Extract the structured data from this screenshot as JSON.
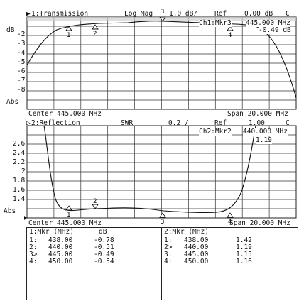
{
  "ch1": {
    "header_marker": "▶",
    "title": "1:Transmission",
    "format": "Log Mag",
    "active_marker_num": "3",
    "scale": "1.0 dB/",
    "ref": "Ref",
    "ref_value": "0.00 dB",
    "flag": "C",
    "unit_label": "dB",
    "abs_label": "Abs",
    "y_ticks": [
      "-2",
      "-3",
      "-4",
      "-5",
      "-6",
      "-7",
      "-8"
    ],
    "marker_readout": "Ch1:Mkr3",
    "marker_freq": "445.000 MHz",
    "marker_val": "-0.49 dB",
    "center": "Center 445.000 MHz",
    "span": "Span 20.000 MHz",
    "markers": [
      "1",
      "2",
      "4"
    ],
    "stripe_color": "#c8c8c8"
  },
  "ch2": {
    "header_marker": "▷",
    "title": "2:Reflection",
    "format": "SWR",
    "scale": "0.2 /",
    "ref": "Ref",
    "ref_value": "1.00",
    "flag": "C",
    "abs_label": "Abs",
    "y_ticks": [
      "2.6",
      "2.4",
      "2.2",
      "2",
      "1.8",
      "1.6",
      "1.4"
    ],
    "marker_readout": "Ch2:Mkr2",
    "marker_freq": "440.000 MHz",
    "marker_val": "1.19",
    "center": "Center 445.000 MHz",
    "span": "Span 20.000 MHz",
    "markers": [
      "1",
      "2",
      "3",
      "4"
    ]
  },
  "table1": {
    "header": [
      "1:Mkr (MHz)",
      "dB"
    ],
    "rows": [
      [
        "1:",
        "438.00",
        "-0.78"
      ],
      [
        "2:",
        "440.00",
        "-0.51"
      ],
      [
        "3>",
        "445.00",
        "-0.49"
      ],
      [
        "4:",
        "450.00",
        "-0.54"
      ]
    ]
  },
  "table2": {
    "header": [
      "2:Mkr (MHz)",
      ""
    ],
    "rows": [
      [
        "1:",
        "438.00",
        "1.42"
      ],
      [
        "2>",
        "440.00",
        "1.19"
      ],
      [
        "3:",
        "445.00",
        "1.15"
      ],
      [
        "4:",
        "450.00",
        "1.16"
      ]
    ]
  }
}
